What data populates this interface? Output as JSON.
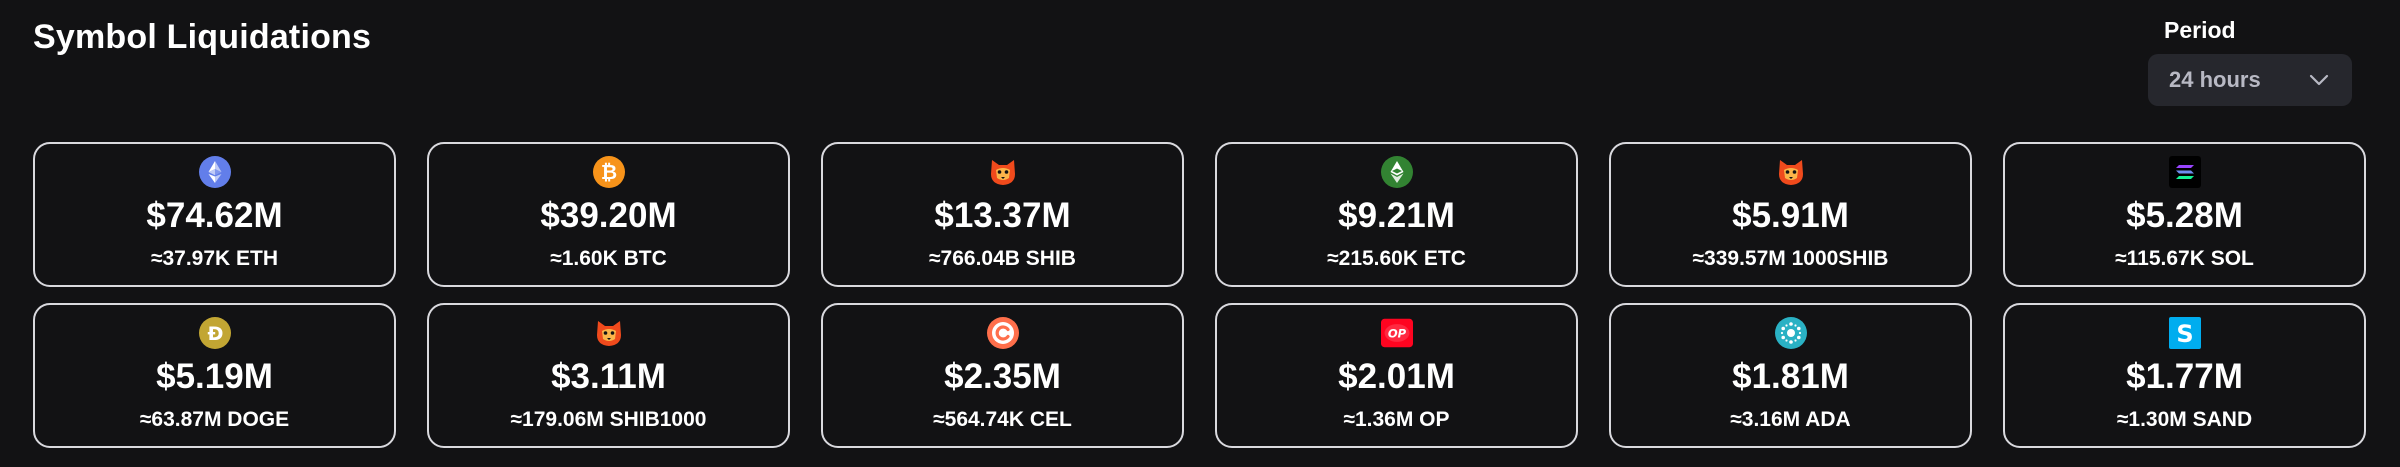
{
  "header": {
    "title": "Symbol Liquidations",
    "period_label": "Period",
    "period_value": "24 hours"
  },
  "cards": [
    {
      "icon": "eth-icon",
      "usd": "$74.62M",
      "qty": "≈37.97K ETH"
    },
    {
      "icon": "btc-icon",
      "usd": "$39.20M",
      "qty": "≈1.60K BTC"
    },
    {
      "icon": "shib-icon",
      "usd": "$13.37M",
      "qty": "≈766.04B SHIB"
    },
    {
      "icon": "etc-icon",
      "usd": "$9.21M",
      "qty": "≈215.60K ETC"
    },
    {
      "icon": "shib-icon",
      "usd": "$5.91M",
      "qty": "≈339.57M 1000SHIB"
    },
    {
      "icon": "sol-icon",
      "usd": "$5.28M",
      "qty": "≈115.67K SOL"
    },
    {
      "icon": "doge-icon",
      "usd": "$5.19M",
      "qty": "≈63.87M DOGE"
    },
    {
      "icon": "shib-icon",
      "usd": "$3.11M",
      "qty": "≈179.06M SHIB1000"
    },
    {
      "icon": "cel-icon",
      "usd": "$2.35M",
      "qty": "≈564.74K CEL"
    },
    {
      "icon": "op-icon",
      "usd": "$2.01M",
      "qty": "≈1.36M OP"
    },
    {
      "icon": "ada-icon",
      "usd": "$1.81M",
      "qty": "≈3.16M ADA"
    },
    {
      "icon": "sand-icon",
      "usd": "$1.77M",
      "qty": "≈1.30M SAND"
    }
  ]
}
